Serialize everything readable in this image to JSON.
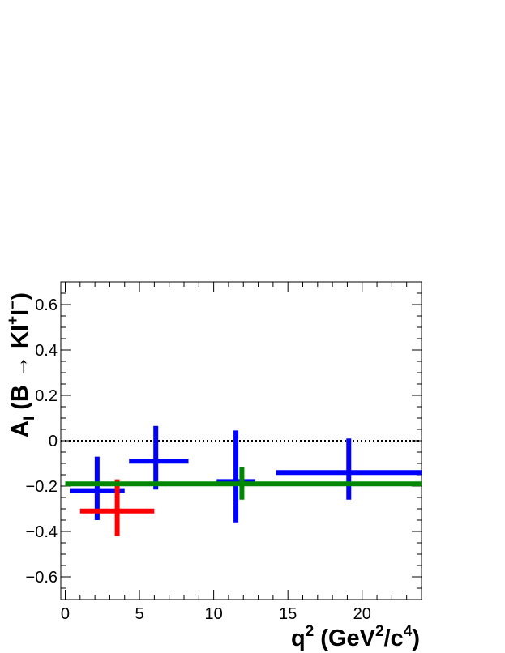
{
  "chart_data": {
    "type": "scatter",
    "title": "",
    "xlabel": "q² (GeV²/c⁴)",
    "ylabel": "AΙ (B → Kl⁺l⁻)",
    "xlim": [
      -0.3,
      24
    ],
    "ylim": [
      -0.7,
      0.7
    ],
    "x_ticks": [
      0,
      5,
      10,
      15,
      20
    ],
    "x_tick_labels": [
      "0",
      "5",
      "10",
      "15",
      "20"
    ],
    "y_ticks": [
      -0.6,
      -0.4,
      -0.2,
      0,
      0.2,
      0.4,
      0.6
    ],
    "y_tick_labels": [
      "−0.6",
      "−0.4",
      "−0.2",
      "0",
      "0.2",
      "0.4",
      "0.6"
    ],
    "grid": false,
    "legend": "none",
    "zero_line": {
      "y": 0,
      "style": "dotted",
      "color": "#000000"
    },
    "series": [
      {
        "color": "#0000ff",
        "points": [
          {
            "x": 2.15,
            "xerr_low": 1.85,
            "xerr_high": 1.85,
            "y": -0.22,
            "yerr_low": 0.13,
            "yerr_high": 0.15
          },
          {
            "x": 6.1,
            "xerr_low": 1.8,
            "xerr_high": 2.2,
            "y": -0.09,
            "yerr_low": 0.125,
            "yerr_high": 0.155
          },
          {
            "x": 11.5,
            "xerr_low": 1.3,
            "xerr_high": 1.3,
            "y": -0.18,
            "yerr_low": 0.18,
            "yerr_high": 0.225
          },
          {
            "x": 19.1,
            "xerr_low": 4.9,
            "xerr_high": 4.9,
            "y": -0.14,
            "yerr_low": 0.12,
            "yerr_high": 0.15
          }
        ]
      },
      {
        "color": "#ff0000",
        "points": [
          {
            "x": 3.5,
            "xerr_low": 2.5,
            "xerr_high": 2.5,
            "y": -0.31,
            "yerr_low": 0.11,
            "yerr_high": 0.14
          }
        ]
      },
      {
        "color": "#008800",
        "points": [
          {
            "x": 0.0,
            "xerr_low": 0.0,
            "xerr_high": 24.0,
            "y": -0.19,
            "yerr_low": 0.0,
            "yerr_high": 0.0
          },
          {
            "x": 11.9,
            "xerr_low": 0.0,
            "xerr_high": 0.0,
            "y": -0.19,
            "yerr_low": 0.07,
            "yerr_high": 0.075
          }
        ]
      }
    ]
  }
}
